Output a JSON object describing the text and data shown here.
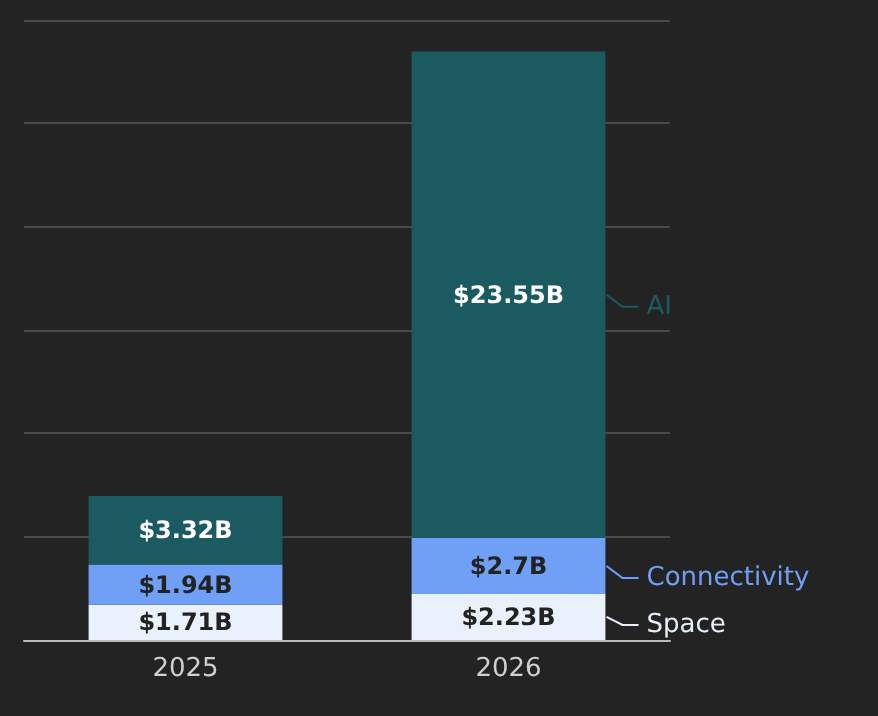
{
  "chart_data": {
    "type": "bar",
    "stacked": true,
    "categories": [
      "2025",
      "2026"
    ],
    "series": [
      {
        "name": "Space",
        "color": "#e8f1fc",
        "values": [
          1.71,
          2.23
        ],
        "value_labels": [
          "$1.71B",
          "$2.23B"
        ]
      },
      {
        "name": "Connectivity",
        "color": "#6fa0f6",
        "values": [
          1.94,
          2.7
        ],
        "value_labels": [
          "$1.94B",
          "$2.7B"
        ]
      },
      {
        "name": "AI",
        "color": "#1c5a62",
        "values": [
          3.32,
          23.55
        ],
        "value_labels": [
          "$3.32B",
          "$23.55B"
        ]
      }
    ],
    "ylim": [
      0,
      30
    ],
    "yticks": [
      {
        "value": 0,
        "label": null
      },
      {
        "value": 5,
        "label": null
      },
      {
        "value": 10,
        "label": null
      },
      {
        "value": 15,
        "label": null
      },
      {
        "value": 20,
        "label": null
      },
      {
        "value": 25,
        "label": null
      },
      {
        "value": 30,
        "label": null
      }
    ],
    "grid": "y",
    "tick_labels": "x",
    "legend": "right"
  }
}
